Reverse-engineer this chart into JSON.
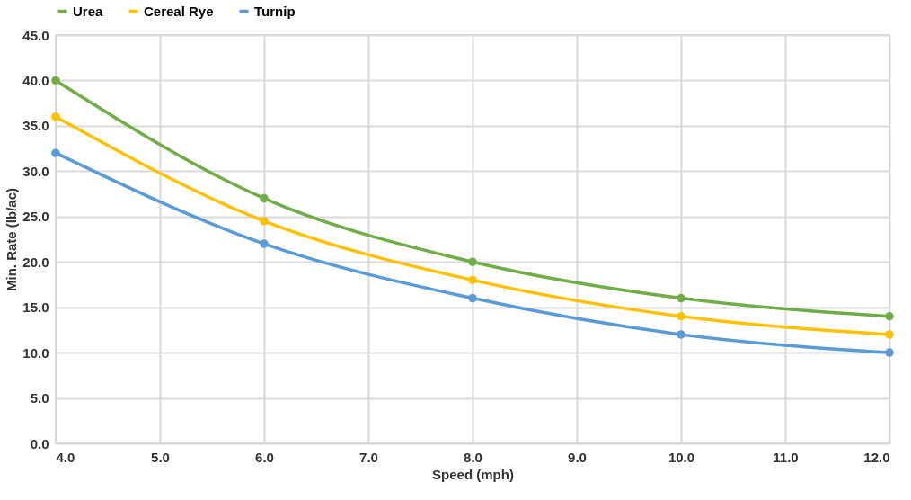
{
  "chart_data": {
    "type": "line",
    "xlabel": "Speed (mph)",
    "ylabel": "Min. Rate (lb/ac)",
    "x": [
      4,
      6,
      8,
      10,
      12
    ],
    "series": [
      {
        "name": "Urea",
        "color": "#70ad47",
        "values": [
          40,
          27,
          20,
          16,
          14
        ]
      },
      {
        "name": "Cereal Rye",
        "color": "#ffc000",
        "values": [
          36,
          24.5,
          18,
          14,
          12
        ]
      },
      {
        "name": "Turnip",
        "color": "#5b9bd5",
        "values": [
          32,
          22,
          16,
          12,
          10
        ]
      }
    ],
    "xlim": [
      4,
      12
    ],
    "xticks": [
      {
        "value": 4,
        "label": "4.0"
      },
      {
        "value": 5,
        "label": "5.0"
      },
      {
        "value": 6,
        "label": "6.0"
      },
      {
        "value": 7,
        "label": "7.0"
      },
      {
        "value": 8,
        "label": "8.0"
      },
      {
        "value": 9,
        "label": "9.0"
      },
      {
        "value": 10,
        "label": "10.0"
      },
      {
        "value": 11,
        "label": "11.0"
      },
      {
        "value": 12,
        "label": "12.0"
      }
    ],
    "ylim": [
      0,
      45
    ],
    "yticks": [
      {
        "value": 0,
        "label": "0.0"
      },
      {
        "value": 5,
        "label": "5.0"
      },
      {
        "value": 10,
        "label": "10.0"
      },
      {
        "value": 15,
        "label": "15.0"
      },
      {
        "value": 20,
        "label": "20.0"
      },
      {
        "value": 25,
        "label": "25.0"
      },
      {
        "value": 30,
        "label": "30.0"
      },
      {
        "value": 35,
        "label": "35.0"
      },
      {
        "value": 40,
        "label": "40.0"
      },
      {
        "value": 45,
        "label": "45.0"
      }
    ],
    "grid": true,
    "legend": "top",
    "marker": "circle",
    "line_style": "solid"
  }
}
